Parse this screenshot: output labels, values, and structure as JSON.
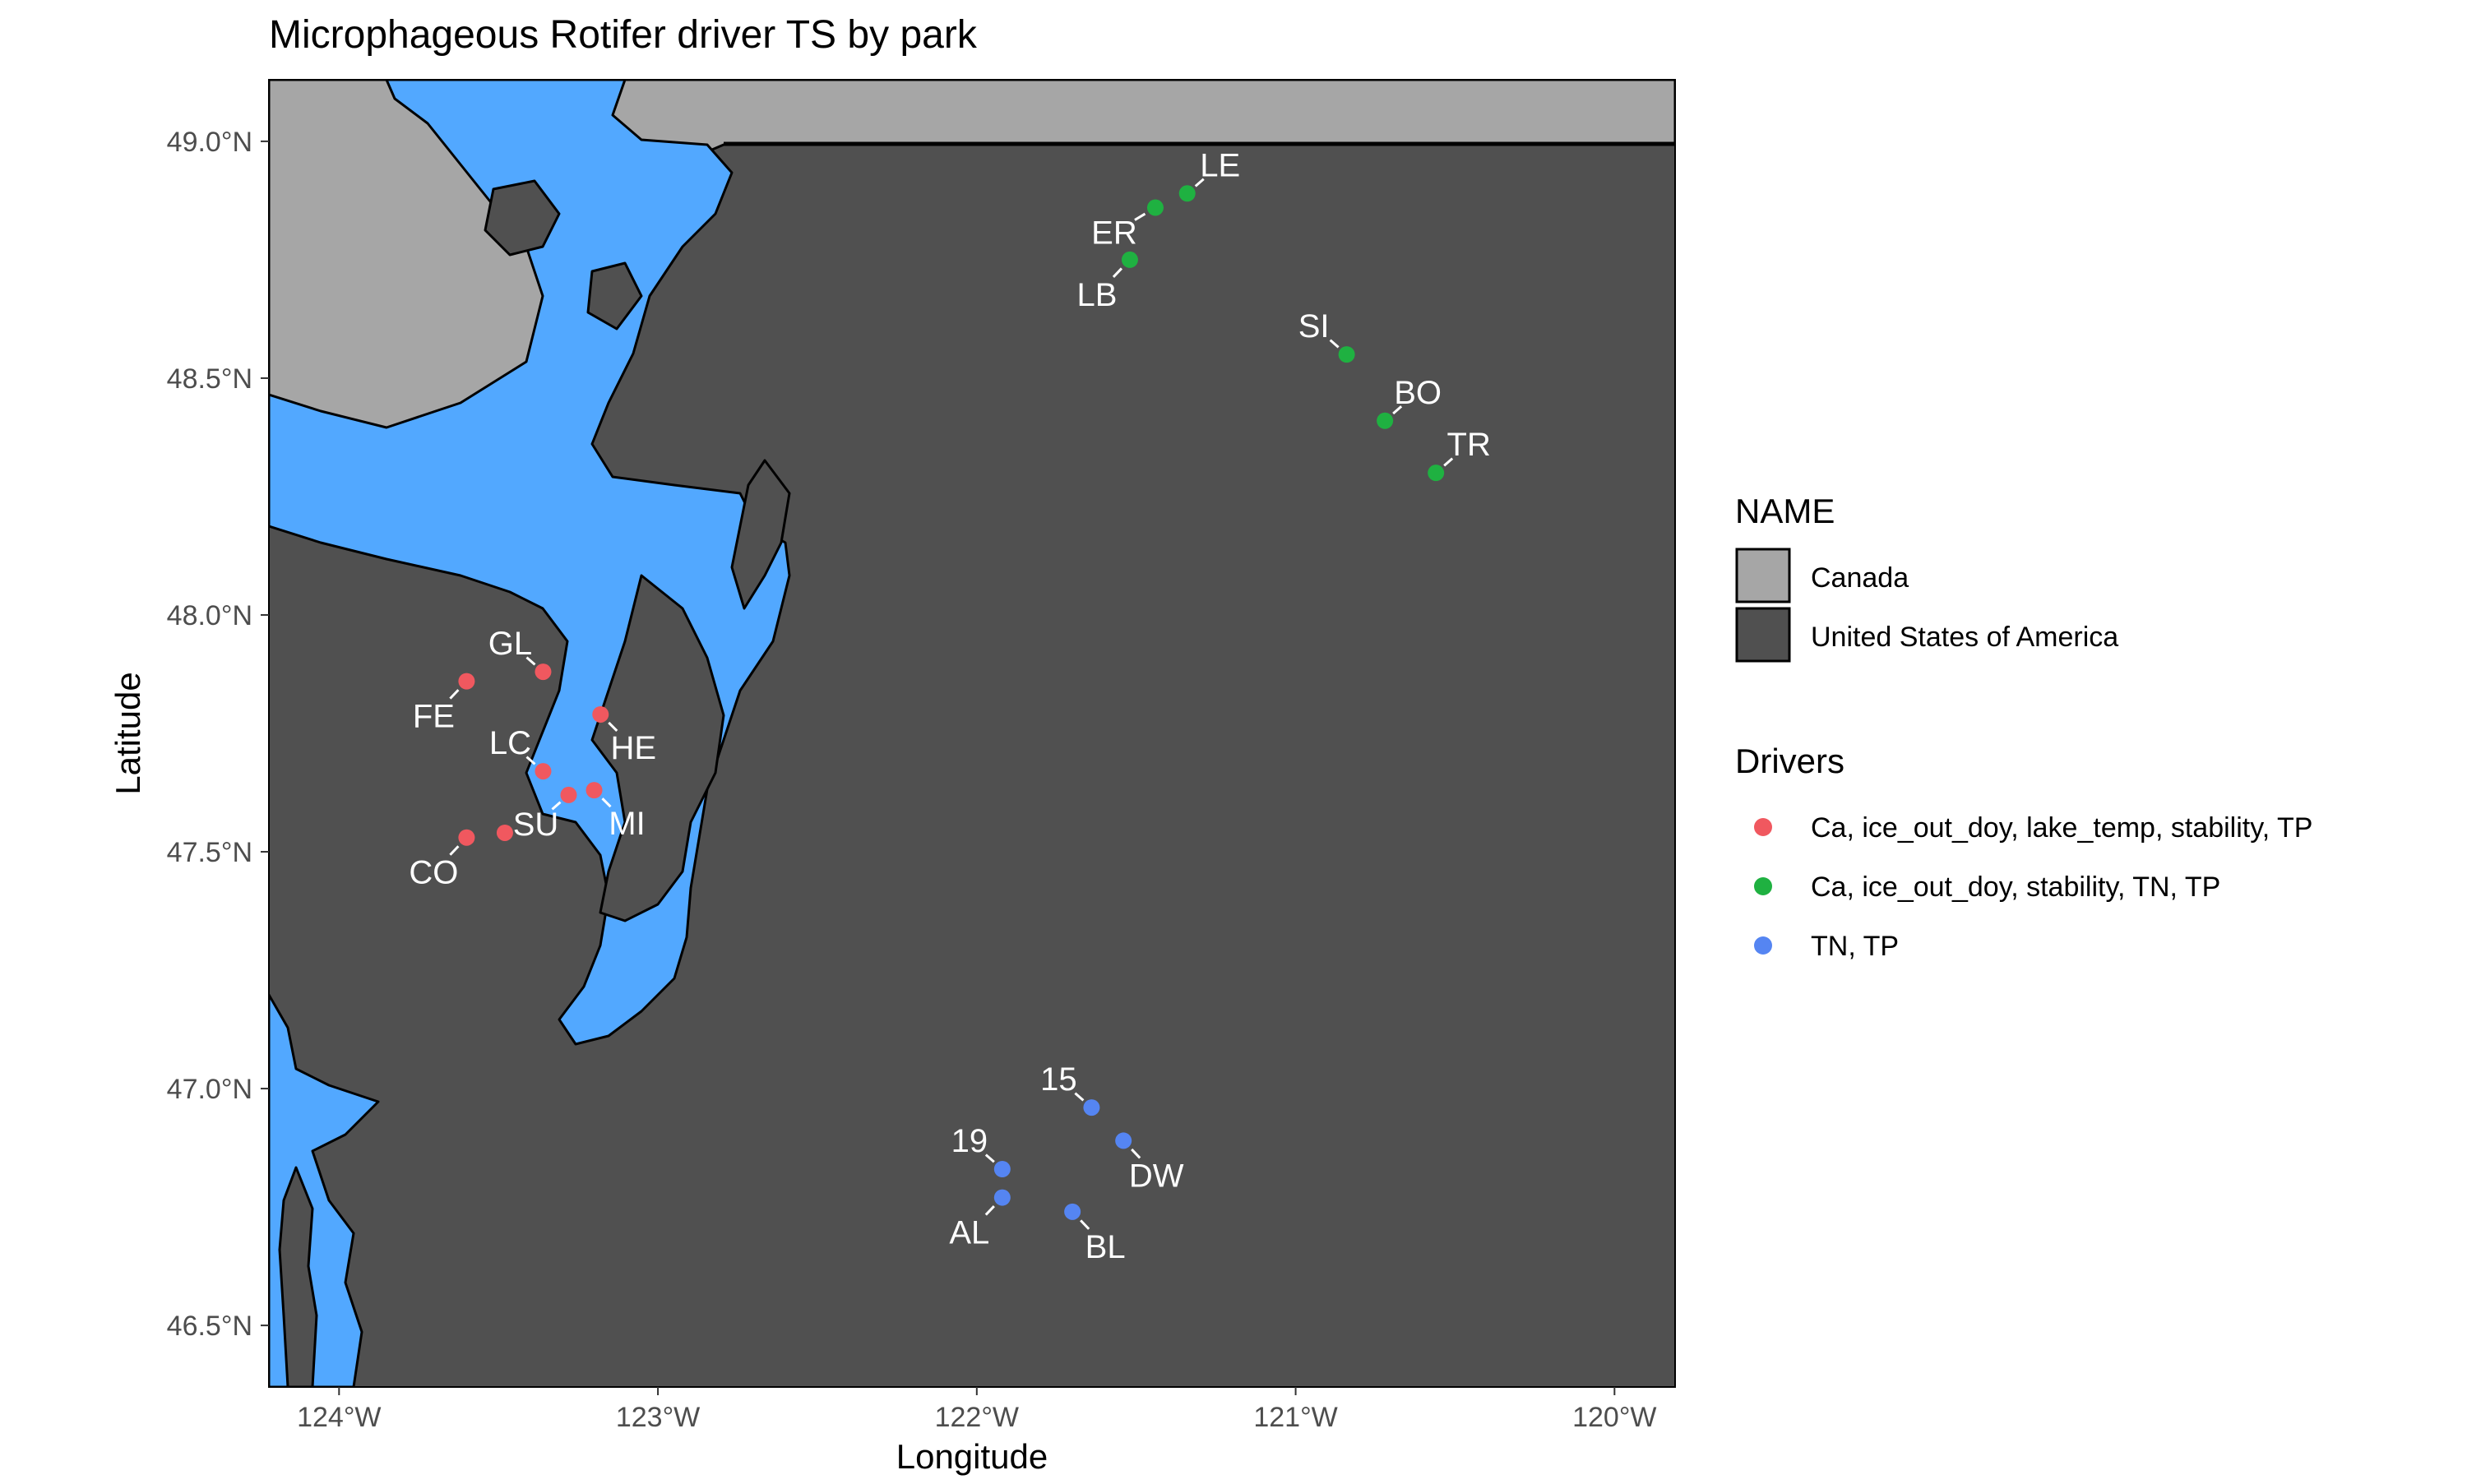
{
  "title": "Microphageous Rotifer driver TS by park",
  "axes": {
    "xlabel": "Longitude",
    "ylabel": "Latitude",
    "x_ticks": [
      {
        "value": -124,
        "label": "124°W"
      },
      {
        "value": -123,
        "label": "123°W"
      },
      {
        "value": -122,
        "label": "122°W"
      },
      {
        "value": -121,
        "label": "121°W"
      },
      {
        "value": -120,
        "label": "120°W"
      }
    ],
    "y_ticks": [
      {
        "value": 46.5,
        "label": "46.5°N"
      },
      {
        "value": 47.0,
        "label": "47.0°N"
      },
      {
        "value": 47.5,
        "label": "47.5°N"
      },
      {
        "value": 48.0,
        "label": "48.0°N"
      },
      {
        "value": 48.5,
        "label": "48.5°N"
      },
      {
        "value": 49.0,
        "label": "49.0°N"
      }
    ],
    "xlim": [
      -124.22,
      -119.81
    ],
    "ylim": [
      46.37,
      49.13
    ]
  },
  "legend_name": {
    "title": "NAME",
    "items": [
      {
        "label": "Canada",
        "color": "#a6a6a6"
      },
      {
        "label": "United States of America",
        "color": "#505050"
      }
    ]
  },
  "legend_drivers": {
    "title": "Drivers",
    "items": [
      {
        "label": "Ca, ice_out_doy, lake_temp, stability, TP",
        "color": "#f0585f"
      },
      {
        "label": "Ca, ice_out_doy, stability, TN, TP",
        "color": "#1fb141"
      },
      {
        "label": "TN, TP",
        "color": "#5585f2"
      }
    ]
  },
  "colors": {
    "water": "#52a8ff",
    "canada": "#a6a6a6",
    "usa": "#505050",
    "label_text": "#ffffff"
  },
  "chart_data": {
    "type": "scatter",
    "title": "Microphageous Rotifer driver TS by park",
    "xlabel": "Longitude",
    "ylabel": "Latitude",
    "xlim": [
      -124.22,
      -119.81
    ],
    "ylim": [
      46.37,
      49.13
    ],
    "grid": false,
    "legend_position": "right",
    "points": [
      {
        "label": "GL",
        "lon": -123.36,
        "lat": 47.88,
        "group": 0
      },
      {
        "label": "FE",
        "lon": -123.6,
        "lat": 47.86,
        "group": 0
      },
      {
        "label": "HE",
        "lon": -123.18,
        "lat": 47.79,
        "group": 0
      },
      {
        "label": "LC",
        "lon": -123.36,
        "lat": 47.67,
        "group": 0
      },
      {
        "label": "SU",
        "lon": -123.28,
        "lat": 47.62,
        "group": 0
      },
      {
        "label": "MI",
        "lon": -123.2,
        "lat": 47.63,
        "group": 0
      },
      {
        "label": "CO",
        "lon": -123.6,
        "lat": 47.53,
        "group": 0
      },
      {
        "label": "",
        "lon": -123.48,
        "lat": 47.54,
        "group": 0
      },
      {
        "label": "LE",
        "lon": -121.34,
        "lat": 48.89,
        "group": 1
      },
      {
        "label": "ER",
        "lon": -121.44,
        "lat": 48.86,
        "group": 1
      },
      {
        "label": "LB",
        "lon": -121.52,
        "lat": 48.75,
        "group": 1
      },
      {
        "label": "SI",
        "lon": -120.84,
        "lat": 48.55,
        "group": 1
      },
      {
        "label": "BO",
        "lon": -120.72,
        "lat": 48.41,
        "group": 1
      },
      {
        "label": "TR",
        "lon": -120.56,
        "lat": 48.3,
        "group": 1
      },
      {
        "label": "15",
        "lon": -121.64,
        "lat": 46.96,
        "group": 2
      },
      {
        "label": "DW",
        "lon": -121.54,
        "lat": 46.89,
        "group": 2
      },
      {
        "label": "19",
        "lon": -121.92,
        "lat": 46.83,
        "group": 2
      },
      {
        "label": "AL",
        "lon": -121.92,
        "lat": 46.77,
        "group": 2
      },
      {
        "label": "BL",
        "lon": -121.7,
        "lat": 46.74,
        "group": 2
      }
    ]
  }
}
